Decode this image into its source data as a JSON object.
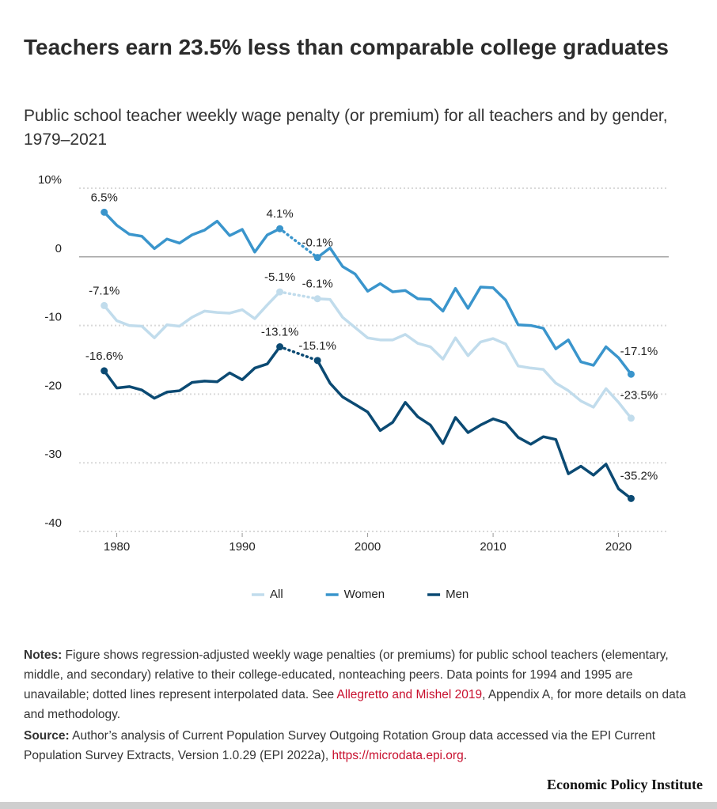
{
  "chart_data": {
    "type": "line",
    "title": "Teachers earn 23.5% less than comparable college graduates",
    "subtitle": "Public school teacher weekly wage penalty (or premium) for all teachers and by gender, 1979–2021",
    "x": [
      1979,
      1980,
      1981,
      1982,
      1983,
      1984,
      1985,
      1986,
      1987,
      1988,
      1989,
      1990,
      1991,
      1992,
      1993,
      1994,
      1995,
      1996,
      1997,
      1998,
      1999,
      2000,
      2001,
      2002,
      2003,
      2004,
      2005,
      2006,
      2007,
      2008,
      2009,
      2010,
      2011,
      2012,
      2013,
      2014,
      2015,
      2016,
      2017,
      2018,
      2019,
      2020,
      2021
    ],
    "xlim": [
      1977,
      2024
    ],
    "xticks": [
      1980,
      1990,
      2000,
      2010,
      2020
    ],
    "ylim": [
      -40,
      10
    ],
    "yticks": [
      {
        "value": 10,
        "label": "10%"
      },
      0,
      -10,
      -20,
      -30,
      -40
    ],
    "grid": true,
    "series": [
      {
        "name": "All",
        "color": "#c1dcec",
        "values": [
          -7.1,
          -9.3,
          -10.0,
          -10.1,
          -11.8,
          -9.9,
          -10.1,
          -8.8,
          -7.9,
          -8.1,
          -8.2,
          -7.7,
          -9.0,
          -7.0,
          -5.1,
          null,
          null,
          -6.1,
          -6.2,
          -8.8,
          -10.3,
          -11.8,
          -12.1,
          -12.1,
          -11.3,
          -12.6,
          -13.1,
          -14.9,
          -11.8,
          -14.4,
          -12.4,
          -11.9,
          -12.7,
          -15.9,
          -16.2,
          -16.4,
          -18.4,
          -19.5,
          -21.0,
          -21.9,
          -19.2,
          -21.2,
          -23.5
        ],
        "value_labels": [
          "-7.1%",
          null,
          null,
          null,
          null,
          null,
          null,
          null,
          null,
          null,
          null,
          null,
          null,
          null,
          "-5.1%",
          null,
          null,
          "-6.1%",
          null,
          null,
          null,
          null,
          null,
          null,
          null,
          null,
          null,
          null,
          null,
          null,
          null,
          null,
          null,
          null,
          null,
          null,
          null,
          null,
          null,
          null,
          null,
          null,
          "-23.5%"
        ]
      },
      {
        "name": "Women",
        "color": "#3a95cc",
        "values": [
          6.5,
          4.6,
          3.3,
          3.0,
          1.2,
          2.6,
          2.0,
          3.2,
          3.9,
          5.2,
          3.1,
          4.0,
          0.7,
          3.2,
          4.1,
          null,
          null,
          -0.1,
          1.3,
          -1.4,
          -2.5,
          -5.0,
          -3.9,
          -5.1,
          -4.9,
          -6.1,
          -6.2,
          -7.9,
          -4.6,
          -7.5,
          -4.4,
          -4.5,
          -6.3,
          -9.9,
          -10.0,
          -10.4,
          -13.4,
          -12.1,
          -15.3,
          -15.8,
          -13.1,
          -14.7,
          -17.1
        ],
        "value_labels": [
          "6.5%",
          null,
          null,
          null,
          null,
          null,
          null,
          null,
          null,
          null,
          null,
          null,
          null,
          null,
          "4.1%",
          null,
          null,
          "-0.1%",
          null,
          null,
          null,
          null,
          null,
          null,
          null,
          null,
          null,
          null,
          null,
          null,
          null,
          null,
          null,
          null,
          null,
          null,
          null,
          null,
          null,
          null,
          null,
          null,
          "-17.1%"
        ]
      },
      {
        "name": "Men",
        "color": "#0b4a73",
        "values": [
          -16.6,
          -19.1,
          -18.9,
          -19.4,
          -20.6,
          -19.7,
          -19.5,
          -18.3,
          -18.1,
          -18.2,
          -16.9,
          -17.9,
          -16.2,
          -15.6,
          -13.1,
          null,
          null,
          -15.1,
          -18.4,
          -20.4,
          -21.5,
          -22.6,
          -25.3,
          -24.1,
          -21.2,
          -23.3,
          -24.5,
          -27.2,
          -23.4,
          -25.6,
          -24.5,
          -23.6,
          -24.2,
          -26.3,
          -27.3,
          -26.2,
          -26.6,
          -31.6,
          -30.5,
          -31.8,
          -30.2,
          -33.8,
          -35.2
        ],
        "value_labels": [
          "-16.6%",
          null,
          null,
          null,
          null,
          null,
          null,
          null,
          null,
          null,
          null,
          null,
          null,
          null,
          "-13.1%",
          null,
          null,
          "-15.1%",
          null,
          null,
          null,
          null,
          null,
          null,
          null,
          null,
          null,
          null,
          null,
          null,
          null,
          null,
          null,
          null,
          null,
          null,
          null,
          null,
          null,
          null,
          null,
          null,
          "-35.2%"
        ]
      }
    ]
  },
  "notes": {
    "label": "Notes:",
    "text": " Figure shows regression-adjusted weekly wage penalties (or premiums) for public school teachers (elementary, middle, and secondary) relative to their college-educated, nonteaching peers. Data points for 1994 and 1995 are unavailable; dotted lines represent interpolated data. See ",
    "link": "Allegretto and Mishel 2019",
    "after": ", Appendix A, for more details on data and methodology."
  },
  "source": {
    "label": "Source:",
    "text": " Author’s analysis of Current Population Survey Outgoing Rotation Group data accessed via the EPI Current Population Survey Extracts, Version 1.0.29 (EPI 2022a), ",
    "link": "https://microdata.epi.org",
    "after": "."
  },
  "footer": "Economic Policy Institute"
}
